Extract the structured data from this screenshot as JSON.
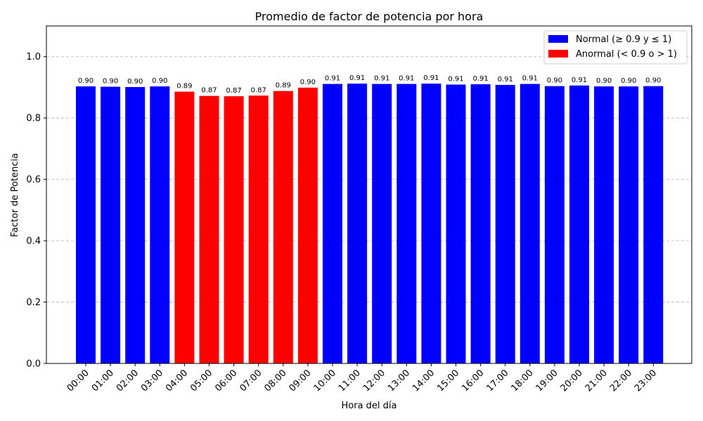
{
  "chart_data": {
    "type": "bar",
    "title": "Promedio de factor de potencia por hora",
    "xlabel": "Hora del día",
    "ylabel": "Factor de Potencia",
    "ylim": [
      0,
      1.1
    ],
    "yticks": [
      "0.0",
      "0.2",
      "0.4",
      "0.6",
      "0.8",
      "1.0"
    ],
    "ytick_values": [
      0,
      0.2,
      0.4,
      0.6,
      0.8,
      1.0
    ],
    "grid": "y-dashed",
    "legend_position": "top-right",
    "colors": {
      "normal": "#0000ff",
      "abnormal": "#ff0000"
    },
    "legend": [
      {
        "key": "normal",
        "label": "Normal (≥ 0.9 y ≤ 1)"
      },
      {
        "key": "abnormal",
        "label": "Anormal (< 0.9 o > 1)"
      }
    ],
    "categories": [
      "00:00",
      "01:00",
      "02:00",
      "03:00",
      "04:00",
      "05:00",
      "06:00",
      "07:00",
      "08:00",
      "09:00",
      "10:00",
      "11:00",
      "12:00",
      "13:00",
      "14:00",
      "15:00",
      "16:00",
      "17:00",
      "18:00",
      "19:00",
      "20:00",
      "21:00",
      "22:00",
      "23:00"
    ],
    "values": [
      0.903,
      0.902,
      0.901,
      0.903,
      0.886,
      0.872,
      0.871,
      0.873,
      0.888,
      0.899,
      0.911,
      0.912,
      0.911,
      0.911,
      0.912,
      0.909,
      0.91,
      0.908,
      0.911,
      0.904,
      0.906,
      0.903,
      0.903,
      0.904
    ],
    "data_labels": [
      "0.90",
      "0.90",
      "0.90",
      "0.90",
      "0.89",
      "0.87",
      "0.87",
      "0.87",
      "0.89",
      "0.90",
      "0.91",
      "0.91",
      "0.91",
      "0.91",
      "0.91",
      "0.91",
      "0.91",
      "0.91",
      "0.91",
      "0.90",
      "0.91",
      "0.90",
      "0.90",
      "0.90"
    ]
  }
}
